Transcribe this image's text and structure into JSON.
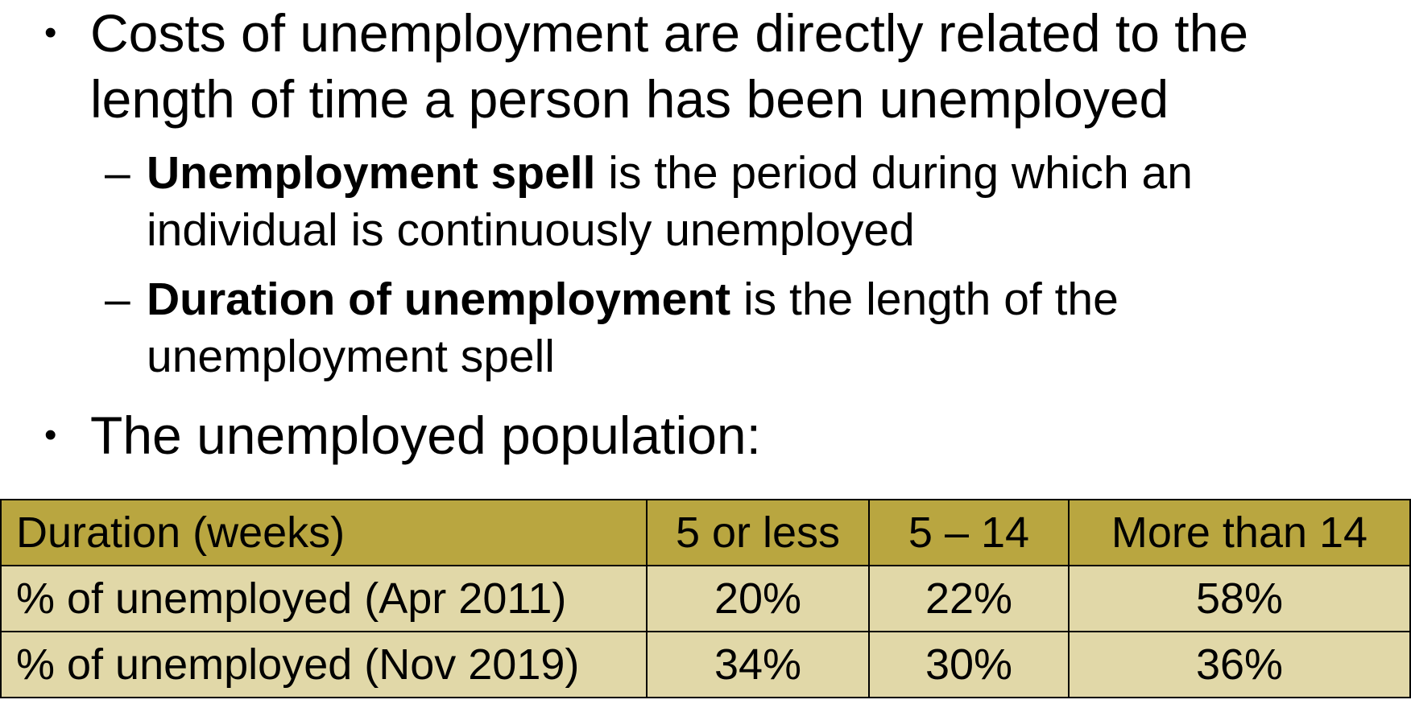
{
  "bullets": [
    {
      "line1": "Costs of unemployment are directly related to the",
      "line2": "length of time a person has been unemployed"
    },
    {
      "text": "The unemployed population:"
    }
  ],
  "sub_bullets": [
    {
      "dash": "–",
      "term": "Unemployment spell",
      "rest": " is the period during which an",
      "line2": "individual is continuously unemployed"
    },
    {
      "dash": "–",
      "term": "Duration of unemployment",
      "rest": " is the length of the",
      "line2": "unemployment spell"
    }
  ],
  "table": {
    "header": [
      "Duration (weeks)",
      "5 or less",
      "5 – 14",
      "More than 14"
    ],
    "rows": [
      [
        "% of unemployed (Apr 2011)",
        "20%",
        "22%",
        "58%"
      ],
      [
        "% of unemployed (Nov 2019)",
        "34%",
        "30%",
        "36%"
      ]
    ],
    "colors": {
      "header_bg": "#b9a640",
      "body_bg": "#e1d8a8"
    }
  }
}
